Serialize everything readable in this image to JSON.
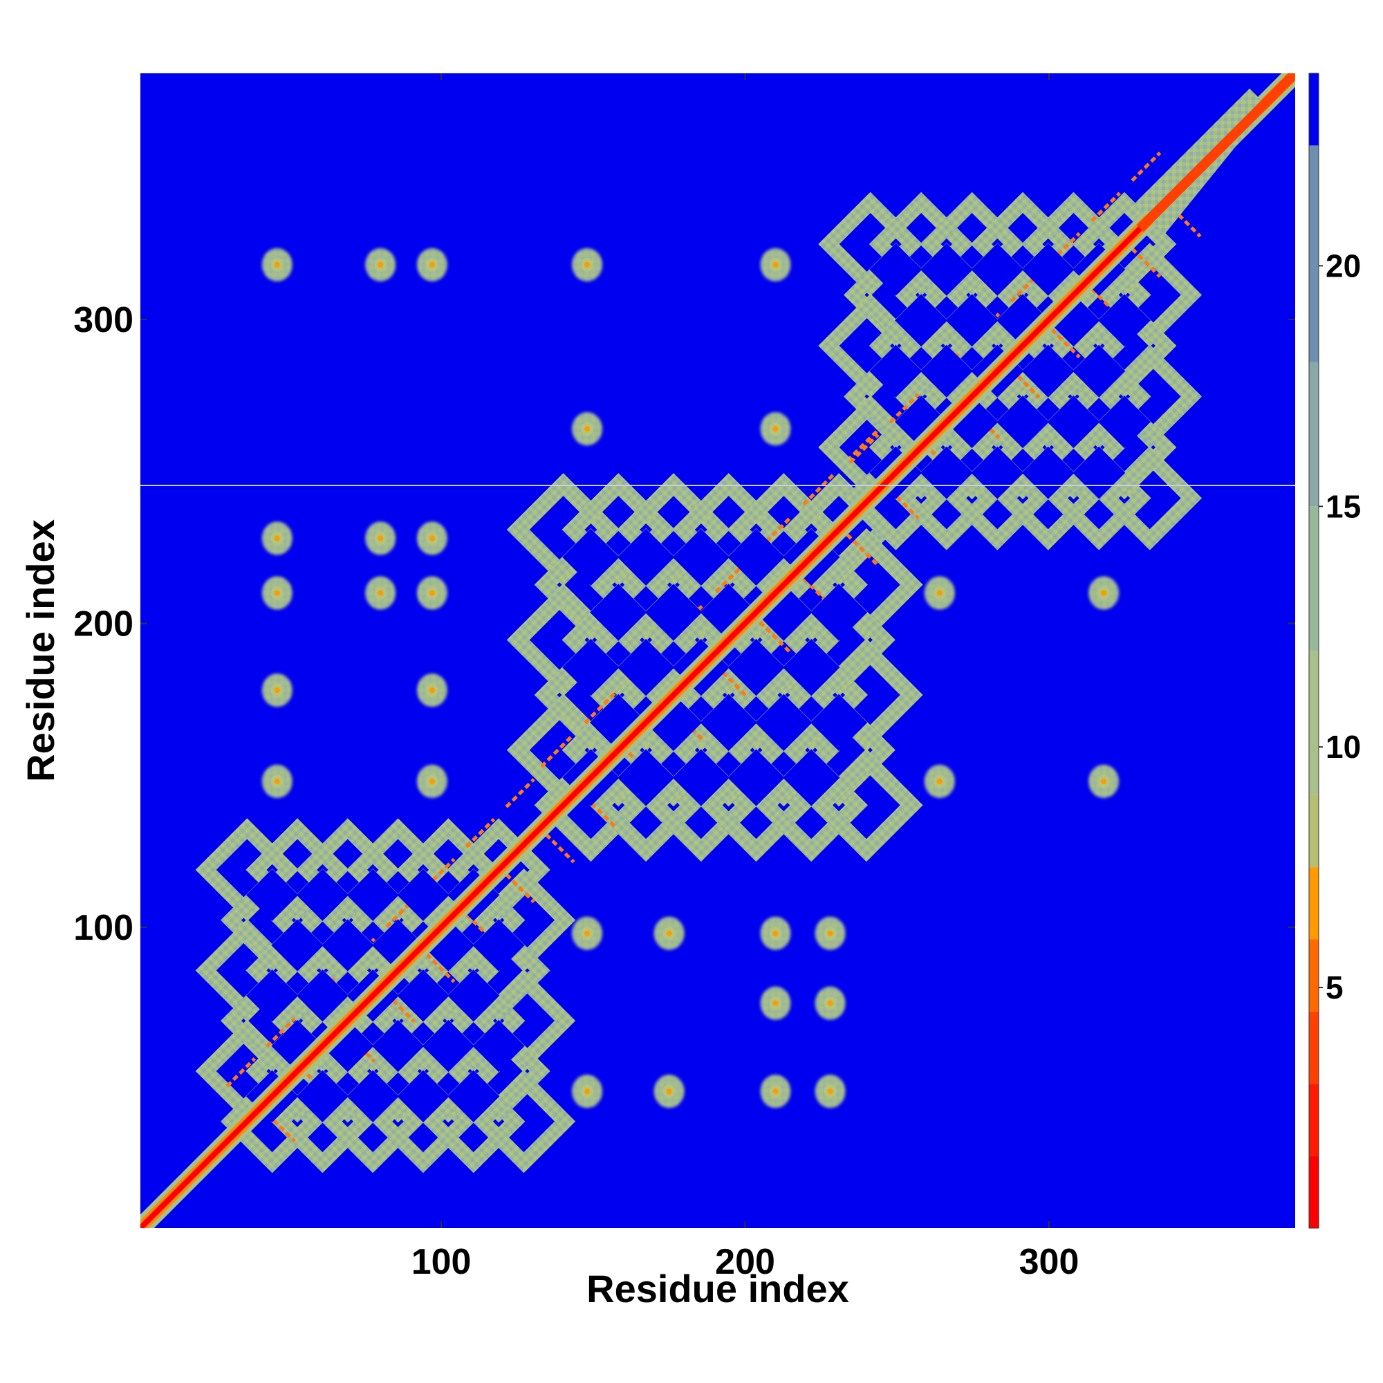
{
  "chart_data": {
    "type": "heatmap",
    "title": "",
    "xlabel": "Residue index",
    "ylabel": "Residue index",
    "xlim": [
      1,
      381
    ],
    "ylim": [
      1,
      381
    ],
    "x_ticks": [
      100,
      200,
      300
    ],
    "y_ticks": [
      100,
      200,
      300
    ],
    "colorbar": {
      "ticks": [
        5,
        10,
        15,
        20
      ],
      "range": [
        0,
        24
      ],
      "bands": [
        {
          "from": 0,
          "to": 1.5,
          "color": "#ff0000"
        },
        {
          "from": 1.5,
          "to": 3,
          "color": "#ff1a00"
        },
        {
          "from": 3,
          "to": 4.5,
          "color": "#ff4000"
        },
        {
          "from": 4.5,
          "to": 6,
          "color": "#ff6a00"
        },
        {
          "from": 6,
          "to": 7.5,
          "color": "#ff9a00"
        },
        {
          "from": 7.5,
          "to": 9,
          "color": "#b4c070"
        },
        {
          "from": 9,
          "to": 12,
          "color": "#a8c08a"
        },
        {
          "from": 12,
          "to": 15,
          "color": "#98b89a"
        },
        {
          "from": 15,
          "to": 18,
          "color": "#8aa8a8"
        },
        {
          "from": 18,
          "to": 22.5,
          "color": "#6f8fb0"
        },
        {
          "from": 22.5,
          "to": 24,
          "color": "#0000f0"
        }
      ]
    },
    "background_color": "#0000f0",
    "diagonal": {
      "core_color": "#ff0000",
      "edge_color": "#ff8800"
    },
    "domains": [
      {
        "start": 25,
        "end": 130
      },
      {
        "start": 128,
        "end": 243
      },
      {
        "start": 230,
        "end": 336
      }
    ],
    "off_diagonal_blobs": [
      {
        "x": 46,
        "y": 228
      },
      {
        "x": 80,
        "y": 228
      },
      {
        "x": 97,
        "y": 228
      },
      {
        "x": 46,
        "y": 210
      },
      {
        "x": 80,
        "y": 210
      },
      {
        "x": 97,
        "y": 210
      },
      {
        "x": 46,
        "y": 178
      },
      {
        "x": 97,
        "y": 178
      },
      {
        "x": 46,
        "y": 148
      },
      {
        "x": 97,
        "y": 148
      },
      {
        "x": 148,
        "y": 98
      },
      {
        "x": 175,
        "y": 98
      },
      {
        "x": 210,
        "y": 98
      },
      {
        "x": 228,
        "y": 98
      },
      {
        "x": 148,
        "y": 46
      },
      {
        "x": 175,
        "y": 46
      },
      {
        "x": 210,
        "y": 46
      },
      {
        "x": 228,
        "y": 46
      },
      {
        "x": 210,
        "y": 75
      },
      {
        "x": 228,
        "y": 75
      },
      {
        "x": 264,
        "y": 148
      },
      {
        "x": 318,
        "y": 148
      },
      {
        "x": 264,
        "y": 210
      },
      {
        "x": 318,
        "y": 210
      },
      {
        "x": 148,
        "y": 264
      },
      {
        "x": 148,
        "y": 318
      },
      {
        "x": 210,
        "y": 264
      },
      {
        "x": 210,
        "y": 318
      },
      {
        "x": 46,
        "y": 318
      },
      {
        "x": 80,
        "y": 318
      },
      {
        "x": 97,
        "y": 318
      }
    ]
  }
}
